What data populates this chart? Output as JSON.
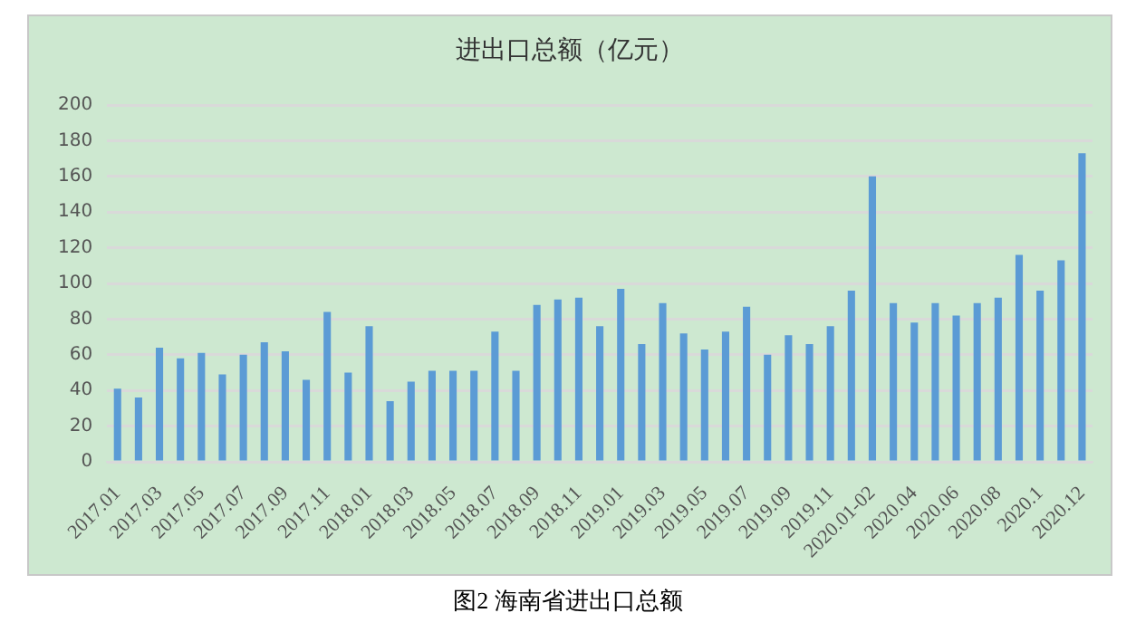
{
  "chart_data": {
    "type": "bar",
    "title": "进出口总额（亿元）",
    "categories": [
      "2017.01",
      null,
      "2017.03",
      null,
      "2017.05",
      null,
      "2017.07",
      null,
      "2017.09",
      null,
      "2017.11",
      null,
      "2018.01",
      null,
      "2018.03",
      null,
      "2018.05",
      null,
      "2018.07",
      null,
      "2018.09",
      null,
      "2018.11",
      null,
      "2019.01",
      null,
      "2019.03",
      null,
      "2019.05",
      null,
      "2019.07",
      null,
      "2019.09",
      null,
      "2019.11",
      null,
      "2020.01-02",
      null,
      "2020.04",
      null,
      "2020.06",
      null,
      "2020.08",
      null,
      "2020.1",
      null,
      "2020.12"
    ],
    "values": [
      41,
      36,
      64,
      58,
      61,
      49,
      60,
      67,
      62,
      46,
      84,
      50,
      76,
      34,
      45,
      51,
      51,
      51,
      73,
      51,
      88,
      91,
      92,
      76,
      97,
      66,
      89,
      72,
      63,
      73,
      87,
      60,
      71,
      66,
      76,
      96,
      160,
      89,
      78,
      89,
      82,
      89,
      92,
      116,
      96,
      113,
      173
    ],
    "color": "#5b9bd5",
    "ylim": [
      0,
      200
    ],
    "yticks": [
      0,
      20,
      40,
      60,
      80,
      100,
      120,
      140,
      160,
      180,
      200
    ],
    "grid": "y",
    "legend": false,
    "annotations": [
      "图2  海南省进出口总额"
    ]
  }
}
